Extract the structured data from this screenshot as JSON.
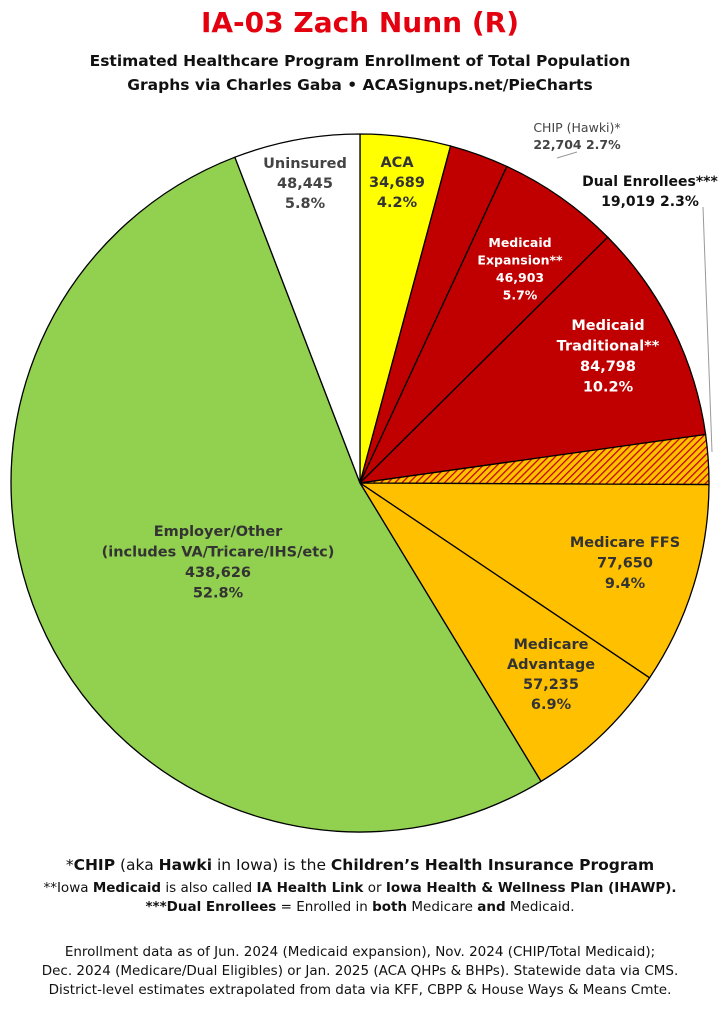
{
  "title": "IA-03 Zach Nunn (R)",
  "subtitle": "Estimated Healthcare Program Enrollment of Total Population",
  "credit": "Graphs via Charles Gaba  •  ACASignups.net/PieCharts",
  "chart_data": {
    "type": "pie",
    "start_angle_deg": 0,
    "direction": "clockwise",
    "slices": [
      {
        "key": "aca",
        "lines": [
          "ACA",
          "34,689",
          "4.2%"
        ],
        "value": 34689,
        "percent": 4.2,
        "color": "#ffff00"
      },
      {
        "key": "chip",
        "lines": [
          "CHIP (Hawki)*",
          "22,704 2.7%"
        ],
        "value": 22704,
        "percent": 2.7,
        "color": "#c00000"
      },
      {
        "key": "medicaid-expansion",
        "lines": [
          "Medicaid",
          "Expansion**",
          "46,903",
          "5.7%"
        ],
        "value": 46903,
        "percent": 5.7,
        "color": "#c00000"
      },
      {
        "key": "medicaid-traditional",
        "lines": [
          "Medicaid",
          "Traditional**",
          "84,798",
          "10.2%"
        ],
        "value": 84798,
        "percent": 10.2,
        "color": "#c00000"
      },
      {
        "key": "dual-enrollees",
        "lines": [
          "Dual Enrollees***",
          "19,019 2.3%"
        ],
        "value": 19019,
        "percent": 2.3,
        "color": "#ffc000",
        "pattern": "hatched",
        "pattern_color": "#c00000"
      },
      {
        "key": "medicare-ffs",
        "lines": [
          "Medicare FFS",
          "77,650",
          "9.4%"
        ],
        "value": 77650,
        "percent": 9.4,
        "color": "#ffc000"
      },
      {
        "key": "medicare-advantage",
        "lines": [
          "Medicare",
          "Advantage",
          "57,235",
          "6.9%"
        ],
        "value": 57235,
        "percent": 6.9,
        "color": "#ffc000"
      },
      {
        "key": "employer-other",
        "lines": [
          "Employer/Other",
          "(includes VA/Tricare/IHS/etc)",
          "438,626",
          "52.8%"
        ],
        "value": 438626,
        "percent": 52.8,
        "color": "#92d050"
      },
      {
        "key": "uninsured",
        "lines": [
          "Uninsured",
          "48,445",
          "5.8%"
        ],
        "value": 48445,
        "percent": 5.8,
        "color": "#ffffff"
      }
    ]
  },
  "footnotes": {
    "chip": {
      "pre": "*",
      "b1": "CHIP",
      "t1": " (aka ",
      "b2": "Hawki",
      "t2": " in Iowa) is the ",
      "b3": "Children’s Health Insurance Program"
    },
    "medicaid": {
      "pre": "**Iowa ",
      "b1": "Medicaid",
      "t1": " is also called ",
      "b2": "IA Health Link",
      "t2": " or ",
      "b3": "Iowa Health & Wellness Plan (IHAWP)."
    },
    "dual": {
      "b1": "***Dual Enrollees",
      "t1": " = Enrolled in ",
      "b2": "both",
      "t2": " Medicare ",
      "b3": "and",
      "t3": " Medicaid."
    }
  },
  "notes": [
    "Enrollment data as of Jun. 2024 (Medicaid expansion), Nov. 2024 (CHIP/Total Medicaid);",
    "Dec. 2024 (Medicare/Dual Eligibles) or Jan. 2025 (ACA QHPs & BHPs). Statewide data via CMS.",
    "District-level estimates extrapolated from data via KFF, CBPP & House Ways & Means Cmte."
  ]
}
